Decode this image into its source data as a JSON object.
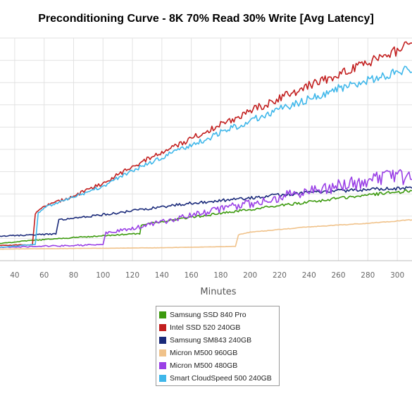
{
  "chart_data": {
    "type": "line",
    "title": "Preconditioning Curve - 8K 70% Read 30% Write [Avg Latency]",
    "xlabel": "Minutes",
    "ylabel": "",
    "x_ticks": [
      40,
      60,
      80,
      100,
      120,
      140,
      160,
      180,
      200,
      220,
      240,
      260,
      280,
      300
    ],
    "xlim": [
      30,
      310
    ],
    "ylim": [
      0,
      50
    ],
    "grid": true,
    "legend_position": "bottom",
    "series": [
      {
        "name": "Samsung SSD 840 Pro",
        "color": "#3c9a0e",
        "points": [
          [
            30,
            3.9
          ],
          [
            50,
            4.5
          ],
          [
            80,
            5.2
          ],
          [
            100,
            5.6
          ],
          [
            125,
            6.1
          ],
          [
            126,
            8.1
          ],
          [
            150,
            9.3
          ],
          [
            200,
            11.5
          ],
          [
            250,
            13.6
          ],
          [
            280,
            14.8
          ],
          [
            310,
            15.7
          ]
        ]
      },
      {
        "name": "Intel SSD 520 240GB",
        "color": "#c21f1f",
        "points": [
          [
            30,
            3.4
          ],
          [
            40,
            3.5
          ],
          [
            52,
            3.6
          ],
          [
            54,
            10.5
          ],
          [
            60,
            12.2
          ],
          [
            80,
            14.5
          ],
          [
            100,
            17.4
          ],
          [
            120,
            21.2
          ],
          [
            140,
            24.2
          ],
          [
            160,
            27.5
          ],
          [
            180,
            30.5
          ],
          [
            200,
            33.6
          ],
          [
            220,
            36.5
          ],
          [
            240,
            39.3
          ],
          [
            260,
            41.9
          ],
          [
            280,
            44.5
          ],
          [
            300,
            47.2
          ],
          [
            310,
            48.6
          ]
        ]
      },
      {
        "name": "Samsung SM843 240GB",
        "color": "#1a2a7a",
        "points": [
          [
            30,
            5.5
          ],
          [
            68,
            6.0
          ],
          [
            70,
            9.1
          ],
          [
            100,
            10.3
          ],
          [
            120,
            11.2
          ],
          [
            126,
            11.5
          ],
          [
            160,
            12.9
          ],
          [
            190,
            13.8
          ],
          [
            220,
            14.8
          ],
          [
            260,
            15.7
          ],
          [
            310,
            16.4
          ]
        ]
      },
      {
        "name": "Micron M500 960GB",
        "color": "#f0c28a",
        "points": [
          [
            30,
            2.6
          ],
          [
            100,
            2.8
          ],
          [
            140,
            2.9
          ],
          [
            190,
            3.2
          ],
          [
            192,
            5.8
          ],
          [
            200,
            6.4
          ],
          [
            240,
            7.6
          ],
          [
            280,
            8.4
          ],
          [
            310,
            9.2
          ]
        ]
      },
      {
        "name": "Micron M500 480GB",
        "color": "#9a40e6",
        "points": [
          [
            30,
            3.0
          ],
          [
            54,
            3.2
          ],
          [
            100,
            3.6
          ],
          [
            102,
            6.2
          ],
          [
            120,
            7.2
          ],
          [
            140,
            8.7
          ],
          [
            160,
            10.1
          ],
          [
            180,
            11.6
          ],
          [
            200,
            12.9
          ],
          [
            220,
            14.2
          ],
          [
            240,
            15.6
          ],
          [
            260,
            16.7
          ],
          [
            280,
            17.9
          ],
          [
            300,
            18.8
          ],
          [
            310,
            19.1
          ]
        ]
      },
      {
        "name": "Smart CloudSpeed 500 240GB",
        "color": "#3fb7ea",
        "points": [
          [
            30,
            3.0
          ],
          [
            54,
            3.7
          ],
          [
            56,
            10.9
          ],
          [
            60,
            11.9
          ],
          [
            80,
            14.2
          ],
          [
            100,
            16.8
          ],
          [
            120,
            20.3
          ],
          [
            140,
            23.1
          ],
          [
            160,
            26.0
          ],
          [
            180,
            28.7
          ],
          [
            200,
            31.5
          ],
          [
            220,
            34.0
          ],
          [
            240,
            36.4
          ],
          [
            260,
            38.6
          ],
          [
            280,
            40.5
          ],
          [
            300,
            42.6
          ],
          [
            310,
            43.3
          ]
        ]
      }
    ]
  },
  "legend": {
    "items": [
      {
        "label": "Samsung SSD 840 Pro",
        "color": "#3c9a0e"
      },
      {
        "label": "Intel SSD 520 240GB",
        "color": "#c21f1f"
      },
      {
        "label": "Samsung SM843 240GB",
        "color": "#1a2a7a"
      },
      {
        "label": "Micron M500 960GB",
        "color": "#f0c28a"
      },
      {
        "label": "Micron M500 480GB",
        "color": "#9a40e6"
      },
      {
        "label": "Smart CloudSpeed 500 240GB",
        "color": "#3fb7ea"
      }
    ]
  }
}
